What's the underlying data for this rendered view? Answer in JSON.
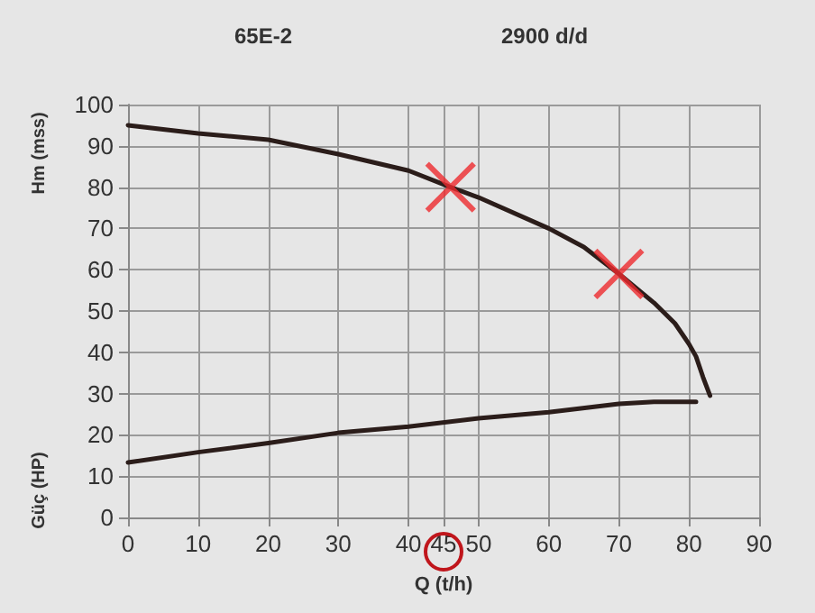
{
  "chart_data": {
    "type": "line",
    "title": "65E-2",
    "subtitle": "2900 d/d",
    "xlabel": "Q (t/h)",
    "ylabel": "Hm (mss)",
    "annotations": [
      "Güç (HP)"
    ],
    "x": [
      0,
      10,
      20,
      30,
      40,
      46,
      50,
      60,
      65,
      70,
      75,
      78,
      80,
      81,
      82,
      83
    ],
    "series": [
      {
        "color": "#2b1d1a",
        "values": [
          95,
          93,
          91.5,
          88,
          84,
          80,
          77.5,
          70,
          65.5,
          59,
          52,
          47,
          42,
          39,
          34,
          29.5
        ]
      },
      {
        "color": "#2b1d1a",
        "x": [
          0,
          10,
          20,
          30,
          40,
          50,
          60,
          70,
          75,
          81
        ],
        "values": [
          13.3,
          15.8,
          18,
          20.5,
          22,
          24,
          25.5,
          27.5,
          28,
          28
        ]
      },
      {
        "type": "scatter",
        "color": "#ee2a2e",
        "marker": "cross",
        "x": [
          46,
          70
        ],
        "values": [
          80,
          59
        ]
      }
    ],
    "xlim": [
      0,
      90
    ],
    "xticks": [
      0,
      10,
      20,
      30,
      40,
      45,
      50,
      60,
      70,
      80,
      90
    ],
    "ylim": [
      0,
      100
    ],
    "yticks": [
      0,
      10,
      20,
      30,
      40,
      50,
      60,
      70,
      80,
      90,
      100
    ],
    "grid": true,
    "marker": "none",
    "line_style": "solid"
  }
}
